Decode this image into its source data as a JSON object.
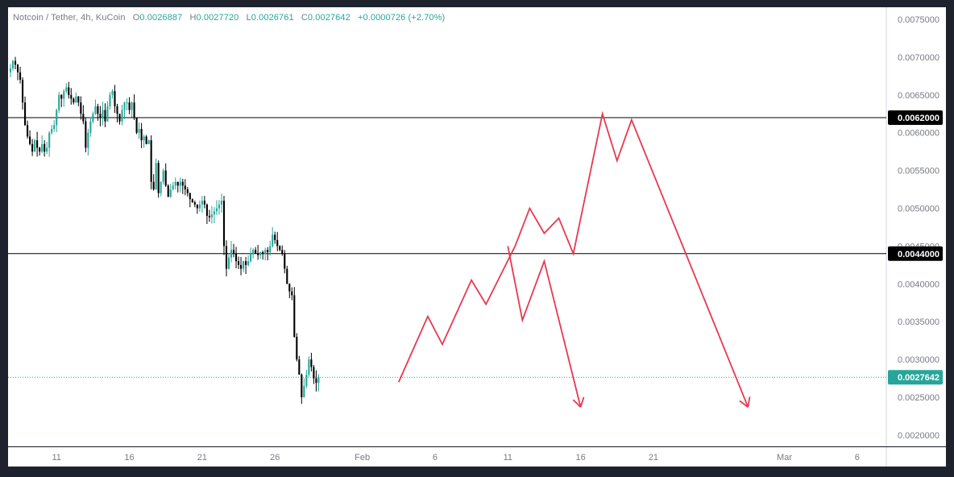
{
  "header": {
    "symbol": "Notcoin / Tether, 4h, KuCoin",
    "o_label": "O",
    "o": "0.0026887",
    "h_label": "H",
    "h": "0.0027720",
    "l_label": "L",
    "l": "0.0026761",
    "c_label": "C",
    "c": "0.0027642",
    "change": "+0.0000726 (+2.70%)"
  },
  "colors": {
    "up": "#26a69a",
    "down": "#000000",
    "projection": "#e8384f",
    "level": "#000000",
    "last_price_bg": "#26a69a"
  },
  "chart_data": {
    "type": "candlestick",
    "title": "Notcoin / Tether, 4h, KuCoin",
    "y_range": [
      0.00185,
      0.00766
    ],
    "x_range": [
      "2024-01-07T16:00",
      "2024-03-08T00:00"
    ],
    "y_ticks": [
      "0.0075000",
      "0.0070000",
      "0.0065000",
      "0.0060000",
      "0.0055000",
      "0.0050000",
      "0.0045000",
      "0.0040000",
      "0.0035000",
      "0.0030000",
      "0.0025000",
      "0.0020000"
    ],
    "x_ticks": [
      {
        "label": "11",
        "date": "2024-01-11"
      },
      {
        "label": "16",
        "date": "2024-01-16"
      },
      {
        "label": "21",
        "date": "2024-01-21"
      },
      {
        "label": "26",
        "date": "2024-01-26"
      },
      {
        "label": "Feb",
        "date": "2024-02-01"
      },
      {
        "label": "6",
        "date": "2024-02-06"
      },
      {
        "label": "11",
        "date": "2024-02-11"
      },
      {
        "label": "16",
        "date": "2024-02-16"
      },
      {
        "label": "21",
        "date": "2024-02-21"
      },
      {
        "label": "Mar",
        "date": "2024-03-01"
      },
      {
        "label": "6",
        "date": "2024-03-06"
      }
    ],
    "horizontal_levels": [
      {
        "label": "0.0062000",
        "value": 0.0062
      },
      {
        "label": "0.0044000",
        "value": 0.0044
      }
    ],
    "last_price": {
      "label": "0.0027642",
      "value": 0.0027642
    },
    "candle_start": "2024-01-07T20:00",
    "candle_interval_hours": 4,
    "close_path": [
      0.00685,
      0.00695,
      0.0069,
      0.0068,
      0.0067,
      0.0064,
      0.0061,
      0.00595,
      0.00585,
      0.00575,
      0.0059,
      0.0058,
      0.00575,
      0.00585,
      0.00575,
      0.0058,
      0.006,
      0.00605,
      0.0061,
      0.0063,
      0.0065,
      0.00645,
      0.00655,
      0.0066,
      0.0065,
      0.00645,
      0.0064,
      0.00648,
      0.0064,
      0.00625,
      0.00615,
      0.0058,
      0.006,
      0.00615,
      0.00625,
      0.00635,
      0.00625,
      0.0062,
      0.0063,
      0.00615,
      0.00635,
      0.0065,
      0.00655,
      0.00635,
      0.00625,
      0.00615,
      0.0063,
      0.0064,
      0.0064,
      0.0063,
      0.0064,
      0.0062,
      0.006,
      0.00605,
      0.0059,
      0.00595,
      0.00585,
      0.0059,
      0.00535,
      0.00525,
      0.0056,
      0.0052,
      0.00535,
      0.0055,
      0.0053,
      0.00515,
      0.00525,
      0.0053,
      0.00535,
      0.0053,
      0.00535,
      0.0053,
      0.00525,
      0.0052,
      0.00512,
      0.00508,
      0.00505,
      0.005,
      0.00505,
      0.0051,
      0.00505,
      0.0049,
      0.00488,
      0.00492,
      0.00496,
      0.005,
      0.00505,
      0.0051,
      0.0045,
      0.0042,
      0.00435,
      0.00445,
      0.0044,
      0.0043,
      0.00425,
      0.0042,
      0.0043,
      0.00425,
      0.0043,
      0.0044,
      0.00445,
      0.0044,
      0.00438,
      0.00442,
      0.0044,
      0.00445,
      0.00442,
      0.0045,
      0.00465,
      0.00458,
      0.0045,
      0.00445,
      0.0044,
      0.0042,
      0.004,
      0.0039,
      0.00385,
      0.0033,
      0.003,
      0.0028,
      0.0025,
      0.00265,
      0.0028,
      0.003,
      0.0029,
      0.00275,
      0.00269,
      0.00276
    ],
    "projection_paths": [
      [
        {
          "date": "2024-02-03T12:00",
          "value": 0.0027
        },
        {
          "date": "2024-02-05T12:00",
          "value": 0.00357
        },
        {
          "date": "2024-02-06T12:00",
          "value": 0.0032
        },
        {
          "date": "2024-02-08T12:00",
          "value": 0.00405
        },
        {
          "date": "2024-02-09T12:00",
          "value": 0.00373
        },
        {
          "date": "2024-02-11T12:00",
          "value": 0.0045
        },
        {
          "date": "2024-02-12T12:00",
          "value": 0.005
        },
        {
          "date": "2024-02-13T12:00",
          "value": 0.00467
        },
        {
          "date": "2024-02-14T12:00",
          "value": 0.00487
        },
        {
          "date": "2024-02-15T12:00",
          "value": 0.0044
        },
        {
          "date": "2024-02-17T12:00",
          "value": 0.00625
        },
        {
          "date": "2024-02-18T12:00",
          "value": 0.00563
        },
        {
          "date": "2024-02-19T12:00",
          "value": 0.00617
        },
        {
          "date": "2024-02-27T12:00",
          "value": 0.00237
        }
      ],
      [
        {
          "date": "2024-02-11T00:00",
          "value": 0.0045
        },
        {
          "date": "2024-02-12T00:00",
          "value": 0.00352
        },
        {
          "date": "2024-02-13T12:00",
          "value": 0.0043
        },
        {
          "date": "2024-02-16T00:00",
          "value": 0.00237
        }
      ]
    ]
  }
}
